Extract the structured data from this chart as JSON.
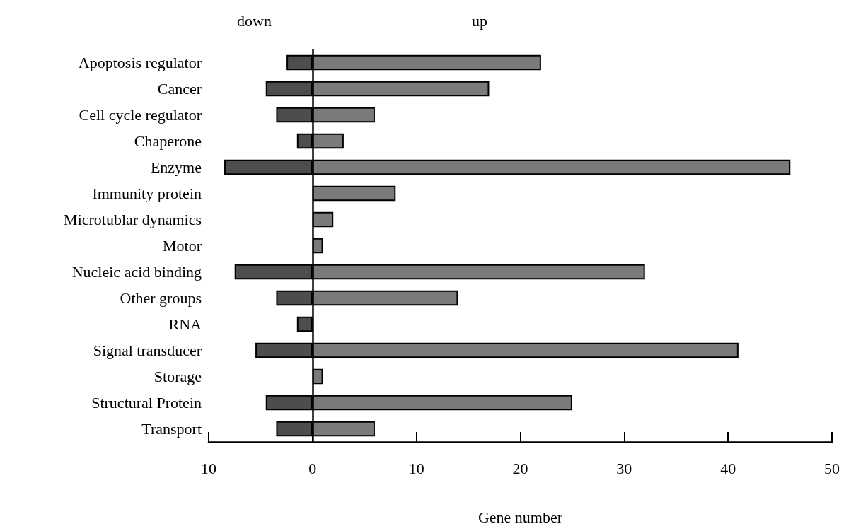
{
  "chart_data": {
    "type": "bar",
    "orientation": "horizontal",
    "stacked": true,
    "categories": [
      "Apoptosis regulator",
      "Cancer",
      "Cell cycle regulator",
      "Chaperone",
      "Enzyme",
      "Immunity protein",
      "Microtublar dynamics",
      "Motor",
      "Nucleic acid binding",
      "Other groups",
      "RNA",
      "Signal transducer",
      "Storage",
      "Structural Protein",
      "Transport"
    ],
    "series": [
      {
        "color": "#4d4d4d",
        "values": [
          -2.5,
          -4.5,
          -3.5,
          -1.5,
          -8.5,
          null,
          null,
          null,
          -7.5,
          -3.5,
          -1.5,
          -5.5,
          null,
          -4.5,
          -3.5
        ]
      },
      {
        "color": "#7a7a7a",
        "values": [
          22,
          17,
          6,
          3,
          46,
          8,
          2,
          1,
          32,
          14,
          null,
          41,
          1,
          25,
          6
        ]
      }
    ],
    "xlabel": "Gene number",
    "xlim": [
      -10,
      50
    ],
    "xticks": [
      {
        "value": -10,
        "label": "10"
      },
      0,
      10,
      20,
      30,
      40,
      50
    ],
    "annotations": [
      "down",
      "up"
    ]
  }
}
